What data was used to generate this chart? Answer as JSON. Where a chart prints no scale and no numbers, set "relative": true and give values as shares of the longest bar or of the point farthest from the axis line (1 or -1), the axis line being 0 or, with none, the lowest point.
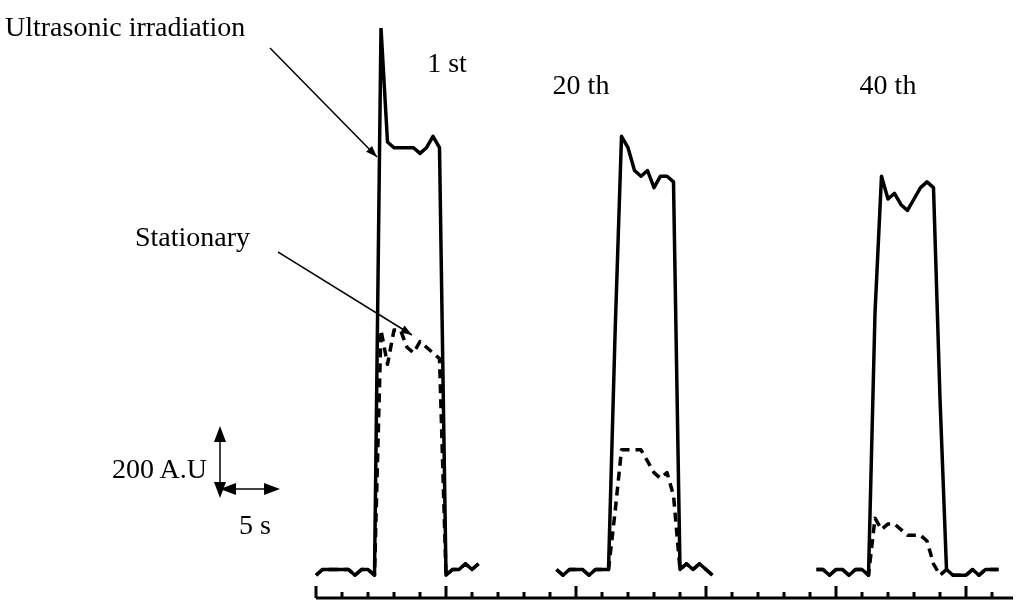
{
  "chart_data": {
    "type": "line",
    "relative": true,
    "categories": [
      null,
      null,
      null,
      null,
      null,
      null,
      null,
      null,
      null,
      null,
      null,
      null,
      null,
      null,
      null,
      null,
      null,
      null,
      null,
      null,
      null,
      null,
      null,
      null,
      null,
      null,
      null,
      null,
      null,
      null,
      null,
      null,
      null,
      null,
      null,
      null,
      null,
      null,
      null,
      null,
      null,
      null,
      null,
      null,
      null,
      null,
      null,
      null,
      null,
      null,
      null,
      null,
      null,
      null,
      null,
      null,
      null,
      null,
      null,
      null,
      null,
      null,
      null,
      null,
      null,
      null,
      null,
      null,
      null,
      null,
      null,
      null,
      null,
      null,
      null,
      null,
      null,
      null,
      null,
      null,
      null,
      null,
      null,
      null,
      null,
      null,
      null,
      null,
      null,
      null,
      null,
      null,
      null,
      null,
      null,
      null,
      null,
      null,
      null,
      null,
      null,
      null,
      null,
      null,
      null,
      null
    ],
    "series": [
      {
        "name": "Ultrasonic irradiation",
        "color": "#000000",
        "line_style": "solid",
        "values": [
          0.04,
          0.05,
          0.05,
          0.05,
          0.05,
          0.05,
          0.04,
          0.05,
          0.05,
          0.04,
          1.0,
          0.8,
          0.79,
          0.79,
          0.79,
          0.79,
          0.78,
          0.79,
          0.81,
          0.79,
          0.04,
          0.05,
          0.05,
          0.06,
          0.05,
          0.06,
          null,
          null,
          null,
          null,
          null,
          null,
          null,
          null,
          null,
          null,
          null,
          null,
          null,
          null,
          null,
          null,
          null,
          null,
          null,
          null,
          null,
          null,
          null,
          null,
          null,
          null,
          null,
          null,
          null,
          null,
          null,
          null,
          null,
          null,
          null,
          null,
          null,
          null,
          null,
          null,
          null,
          null,
          null,
          null,
          null,
          null,
          null,
          null,
          null,
          null,
          null,
          null,
          null,
          null,
          null,
          null,
          null,
          null,
          null,
          null,
          null,
          null,
          null,
          null,
          null,
          null,
          null,
          null,
          null,
          null,
          null,
          null,
          null,
          null,
          null,
          null,
          null,
          null,
          null,
          null
        ]
      },
      {
        "name": "Stationary",
        "color": "#000000",
        "line_style": "dashed",
        "values": [
          0.04,
          0.05,
          0.05,
          0.05,
          0.05,
          0.05,
          0.04,
          0.05,
          0.05,
          0.04,
          0.47,
          0.41,
          0.47,
          0.47,
          0.44,
          0.43,
          0.45,
          0.44,
          0.43,
          0.42,
          0.04,
          0.05,
          0.05,
          0.06,
          0.05,
          0.06,
          null,
          null,
          null,
          null,
          null,
          null,
          null,
          null,
          null,
          null,
          null,
          null,
          null,
          null,
          null,
          null,
          null,
          null,
          null,
          null,
          null,
          null,
          null,
          null,
          null,
          null,
          null,
          null,
          null,
          null,
          null,
          null,
          null,
          null,
          null,
          null,
          null,
          null,
          null,
          null,
          null,
          null,
          null,
          null,
          null,
          null,
          null,
          null,
          null,
          null,
          null,
          null,
          null,
          null,
          null,
          null,
          null,
          null,
          null,
          null,
          null,
          null,
          null,
          null,
          null,
          null,
          null,
          null,
          null,
          null,
          null,
          null,
          null,
          null,
          null,
          null,
          null,
          null,
          null,
          null
        ]
      },
      {
        "color": "#000000",
        "line_style": "solid",
        "values": [
          null,
          null,
          null,
          null,
          null,
          null,
          null,
          null,
          null,
          null,
          null,
          null,
          null,
          null,
          null,
          null,
          null,
          null,
          null,
          null,
          null,
          null,
          null,
          null,
          null,
          null,
          null,
          null,
          null,
          null,
          null,
          null,
          null,
          null,
          null,
          null,
          null,
          0.05,
          0.04,
          0.05,
          0.05,
          0.05,
          0.04,
          0.05,
          0.05,
          0.05,
          0.46,
          0.81,
          0.79,
          0.75,
          0.74,
          0.75,
          0.72,
          0.74,
          0.74,
          0.73,
          0.05,
          0.06,
          0.05,
          0.06,
          0.05,
          0.04,
          null,
          null,
          null,
          null,
          null,
          null,
          null,
          null,
          null,
          null,
          null,
          null,
          null,
          null,
          null,
          null,
          null,
          null,
          null,
          null,
          null,
          null,
          null,
          null,
          null,
          null,
          null,
          null,
          null,
          null,
          null,
          null,
          null,
          null,
          null,
          null,
          null,
          null,
          null,
          null,
          null,
          null,
          null,
          null
        ]
      },
      {
        "color": "#000000",
        "line_style": "dashed",
        "values": [
          null,
          null,
          null,
          null,
          null,
          null,
          null,
          null,
          null,
          null,
          null,
          null,
          null,
          null,
          null,
          null,
          null,
          null,
          null,
          null,
          null,
          null,
          null,
          null,
          null,
          null,
          null,
          null,
          null,
          null,
          null,
          null,
          null,
          null,
          null,
          null,
          null,
          0.05,
          0.04,
          0.05,
          0.05,
          0.05,
          0.04,
          0.05,
          0.05,
          0.05,
          0.15,
          0.26,
          0.26,
          0.26,
          0.26,
          0.24,
          0.22,
          0.21,
          0.22,
          0.18,
          0.05,
          0.06,
          0.05,
          0.06,
          0.05,
          0.04,
          null,
          null,
          null,
          null,
          null,
          null,
          null,
          null,
          null,
          null,
          null,
          null,
          null,
          null,
          null,
          null,
          null,
          null,
          null,
          null,
          null,
          null,
          null,
          null,
          null,
          null,
          null,
          null,
          null,
          null,
          null,
          null,
          null,
          null,
          null,
          null,
          null,
          null,
          null,
          null,
          null,
          null,
          null,
          null
        ]
      },
      {
        "color": "#000000",
        "line_style": "solid",
        "values": [
          null,
          null,
          null,
          null,
          null,
          null,
          null,
          null,
          null,
          null,
          null,
          null,
          null,
          null,
          null,
          null,
          null,
          null,
          null,
          null,
          null,
          null,
          null,
          null,
          null,
          null,
          null,
          null,
          null,
          null,
          null,
          null,
          null,
          null,
          null,
          null,
          null,
          null,
          null,
          null,
          null,
          null,
          null,
          null,
          null,
          null,
          null,
          null,
          null,
          null,
          null,
          null,
          null,
          null,
          null,
          null,
          null,
          null,
          null,
          null,
          null,
          null,
          null,
          null,
          null,
          null,
          null,
          null,
          null,
          null,
          null,
          null,
          null,
          null,
          null,
          null,
          null,
          0.05,
          0.05,
          0.04,
          0.05,
          0.05,
          0.04,
          0.05,
          0.05,
          0.04,
          0.5,
          0.74,
          0.7,
          0.71,
          0.69,
          0.68,
          0.7,
          0.72,
          0.73,
          0.72,
          0.35,
          0.05,
          0.04,
          0.04,
          0.04,
          0.05,
          0.04,
          0.05,
          0.05,
          0.05
        ]
      },
      {
        "color": "#000000",
        "line_style": "dashed",
        "values": [
          null,
          null,
          null,
          null,
          null,
          null,
          null,
          null,
          null,
          null,
          null,
          null,
          null,
          null,
          null,
          null,
          null,
          null,
          null,
          null,
          null,
          null,
          null,
          null,
          null,
          null,
          null,
          null,
          null,
          null,
          null,
          null,
          null,
          null,
          null,
          null,
          null,
          null,
          null,
          null,
          null,
          null,
          null,
          null,
          null,
          null,
          null,
          null,
          null,
          null,
          null,
          null,
          null,
          null,
          null,
          null,
          null,
          null,
          null,
          null,
          null,
          null,
          null,
          null,
          null,
          null,
          null,
          null,
          null,
          null,
          null,
          null,
          null,
          null,
          null,
          null,
          null,
          0.05,
          0.05,
          0.04,
          0.05,
          0.05,
          0.04,
          0.05,
          0.05,
          0.04,
          0.14,
          0.12,
          0.13,
          0.13,
          0.12,
          0.11,
          0.11,
          0.11,
          0.1,
          0.06,
          0.04,
          0.05,
          0.04,
          0.04,
          0.04,
          0.05,
          0.04,
          0.05,
          0.05,
          0.05
        ]
      }
    ],
    "marker": "none",
    "legend": false,
    "annotations": [
      "1 st",
      "20 th",
      "40 th",
      "200 A.U",
      "5 s"
    ]
  }
}
